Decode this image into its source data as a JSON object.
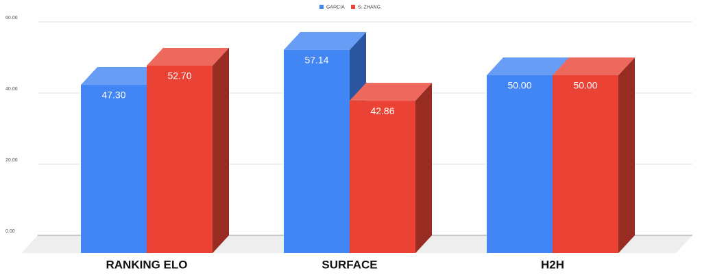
{
  "chart_data": {
    "type": "bar3d",
    "categories": [
      "RANKING ELO",
      "SURFACE",
      "H2H"
    ],
    "series": [
      {
        "name": "GARCIA",
        "color": "#4285f4",
        "values": [
          47.3,
          57.14,
          50
        ],
        "value_labels": [
          "47.30",
          "57.14",
          "50.00"
        ]
      },
      {
        "name": "S. ZHANG",
        "color": "#ea4335",
        "values": [
          52.7,
          42.86,
          50
        ],
        "value_labels": [
          "52.70",
          "42.86",
          "50.00"
        ]
      }
    ],
    "ylim": [
      0,
      60
    ],
    "yticks": [
      {
        "value": 0,
        "label": "0.00"
      },
      {
        "value": 20,
        "label": "20.00"
      },
      {
        "value": 40,
        "label": "40.00"
      },
      {
        "value": 60,
        "label": "60.00"
      }
    ],
    "grid": true,
    "legend": "top"
  }
}
